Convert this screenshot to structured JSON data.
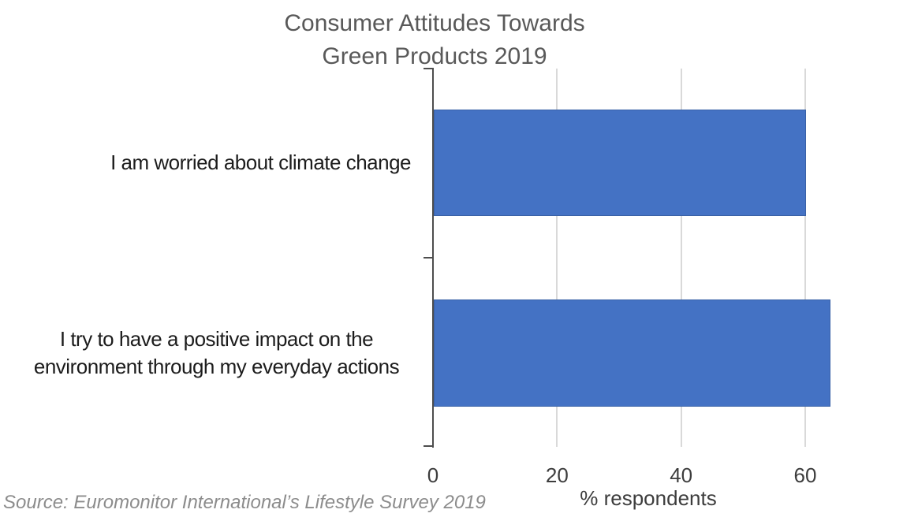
{
  "chart_data": {
    "type": "bar",
    "orientation": "horizontal",
    "title": "Consumer Attitudes Towards\nGreen Products 2019",
    "categories": [
      "I am worried about climate change",
      "I try to have a positive impact on the\nenvironment through my everyday actions"
    ],
    "values": [
      60,
      64
    ],
    "xlabel": "% respondents",
    "xticks": [
      0,
      20,
      40,
      60
    ],
    "xlim": [
      0,
      78
    ],
    "grid": true,
    "legend": "none",
    "bar_color": "#4472c4",
    "axis_color": "#4d4d4d",
    "gridline_color": "#d9d9d9",
    "source_note": "Source: Euromonitor International’s Lifestyle Survey 2019"
  }
}
